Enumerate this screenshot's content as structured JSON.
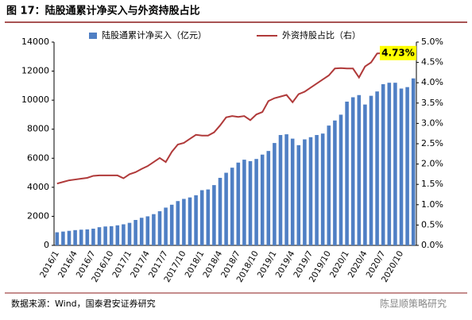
{
  "chart_data": {
    "type": "bar_line",
    "title": "图 17：陆股通累计净买入与外资持股占比",
    "source": "数据来源：Wind，国泰君安证券研究",
    "watermark": "陈显顺策略研究",
    "categories": [
      "2016/1",
      null,
      null,
      "2016/4",
      null,
      null,
      "2016/7",
      null,
      null,
      "2016/10",
      null,
      null,
      "2017/1",
      null,
      null,
      "2017/4",
      null,
      null,
      "2017/7",
      null,
      null,
      "2017/10",
      null,
      null,
      "2018/1",
      null,
      null,
      "2018/4",
      null,
      null,
      "2018/7",
      null,
      null,
      "2018/10",
      null,
      null,
      "2019/1",
      null,
      null,
      "2019/4",
      null,
      null,
      "2019/7",
      null,
      null,
      "2019/10",
      null,
      null,
      "2020/1",
      null,
      null,
      "2020/4",
      null,
      null,
      "2020/7",
      null,
      null,
      "2020/10",
      null,
      null
    ],
    "series": [
      {
        "name": "陆股通累计净买入（亿元）",
        "color": "#4f7fc4",
        "kind": "bar",
        "values": [
          900,
          950,
          1000,
          1050,
          1080,
          1100,
          1150,
          1250,
          1300,
          1320,
          1380,
          1450,
          1550,
          1750,
          1900,
          2000,
          2150,
          2350,
          2600,
          2800,
          3050,
          3200,
          3300,
          3450,
          3800,
          3850,
          4150,
          4650,
          5000,
          5350,
          5700,
          5900,
          5800,
          5950,
          6250,
          6500,
          7050,
          7600,
          7650,
          7350,
          6900,
          7300,
          7450,
          7600,
          7700,
          8250,
          8600,
          9000,
          9900,
          10200,
          10350,
          9700,
          10300,
          10600,
          11100,
          11200,
          11200,
          10800,
          10900,
          11500
        ]
      },
      {
        "name": "外资持股占比（右）",
        "color": "#b03a3a",
        "kind": "line",
        "axis": "y2",
        "values": [
          1.52,
          1.56,
          1.6,
          1.62,
          1.64,
          1.66,
          1.71,
          1.72,
          1.72,
          1.72,
          1.72,
          1.65,
          1.75,
          1.8,
          1.88,
          1.95,
          2.05,
          2.15,
          2.05,
          2.3,
          2.48,
          2.52,
          2.62,
          2.72,
          2.7,
          2.7,
          2.78,
          2.95,
          3.15,
          3.18,
          3.16,
          3.18,
          3.08,
          3.22,
          3.28,
          3.55,
          3.62,
          3.66,
          3.7,
          3.52,
          3.72,
          3.78,
          3.88,
          3.98,
          4.08,
          4.18,
          4.35,
          4.36,
          4.35,
          4.35,
          4.13,
          4.4,
          4.5,
          4.72,
          4.73,
          4.73,
          4.73,
          4.73,
          4.73,
          4.73
        ]
      }
    ],
    "annotation": {
      "label": "4.73%",
      "value": 4.73
    },
    "ylim": [
      0,
      14000
    ],
    "yticks": [
      0,
      2000,
      4000,
      6000,
      8000,
      10000,
      12000,
      14000
    ],
    "y2lim": [
      0,
      5
    ],
    "y2ticks": [
      {
        "value": 0,
        "label": "0.0%"
      },
      {
        "value": 0.5,
        "label": "0.5%"
      },
      {
        "value": 1,
        "label": "1.0%"
      },
      {
        "value": 1.5,
        "label": "1.5%"
      },
      {
        "value": 2,
        "label": "2.0%"
      },
      {
        "value": 2.5,
        "label": "2.5%"
      },
      {
        "value": 3,
        "label": "3.0%"
      },
      {
        "value": 3.5,
        "label": "3.5%"
      },
      {
        "value": 4,
        "label": "4.0%"
      },
      {
        "value": 4.5,
        "label": "4.5%"
      },
      {
        "value": 5,
        "label": "5.0%"
      }
    ]
  }
}
